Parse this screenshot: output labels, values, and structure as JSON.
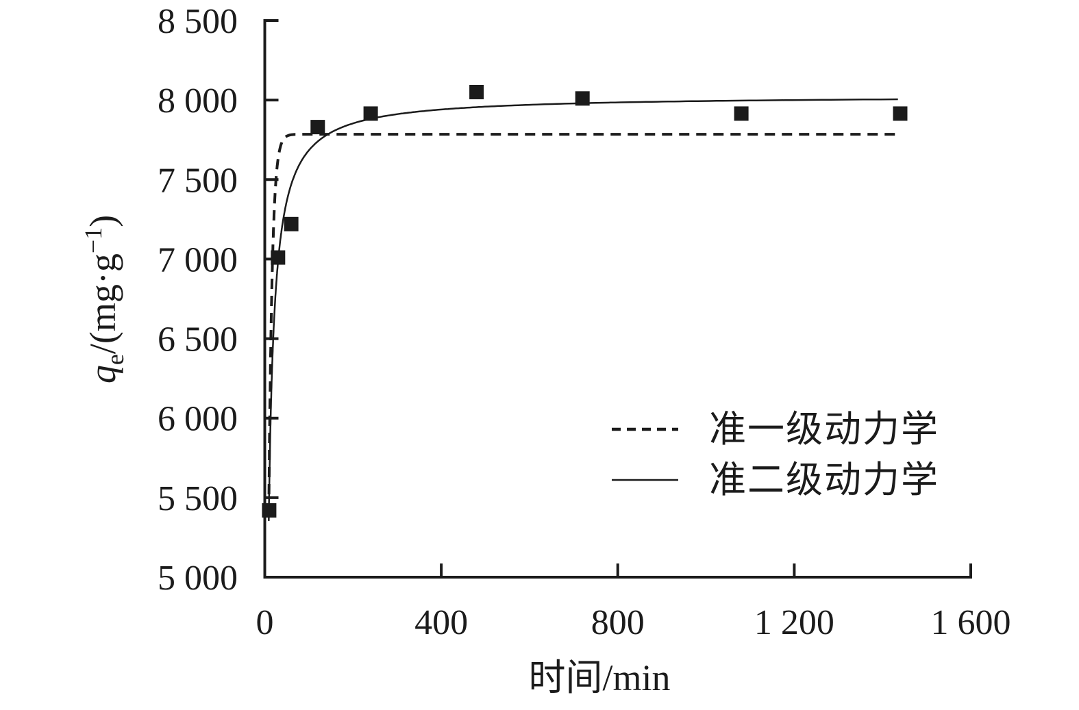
{
  "chart_data": {
    "type": "scatter",
    "title": "",
    "xlabel": "时间/min",
    "ylabel": {
      "variable": "q",
      "variable_subscript": "e",
      "unit_open": "/(mg·g",
      "unit_exponent": "−1",
      "unit_close": ")"
    },
    "xlim": [
      0,
      1600
    ],
    "ylim": [
      5000,
      8500
    ],
    "x_ticks": [
      0,
      400,
      800,
      1200,
      1600
    ],
    "x_tick_labels": [
      "0",
      "400",
      "800",
      "1 200",
      "1 600"
    ],
    "y_ticks": [
      8500,
      8000,
      7500,
      7000,
      6500,
      6000,
      5500,
      5000
    ],
    "y_tick_labels": [
      "8 500",
      "8 000",
      "7 500",
      "7 000",
      "6 500",
      "6 000",
      "5 500",
      "5 000"
    ],
    "grid": false,
    "points_marker": "filled-square",
    "points": [
      {
        "t": 10,
        "qe": 5420
      },
      {
        "t": 30,
        "qe": 7010
      },
      {
        "t": 60,
        "qe": 7220
      },
      {
        "t": 120,
        "qe": 7830
      },
      {
        "t": 240,
        "qe": 7915
      },
      {
        "t": 480,
        "qe": 8050
      },
      {
        "t": 720,
        "qe": 8010
      },
      {
        "t": 1080,
        "qe": 7915
      },
      {
        "t": 1440,
        "qe": 7915
      }
    ],
    "fits": [
      {
        "name": "准一级动力学",
        "model": "pseudo-first-order",
        "line_style": "dashed",
        "qe": 7785,
        "k1": 0.13,
        "t_start": 9.5,
        "t_end": 1435
      },
      {
        "name": "准二级动力学",
        "model": "pseudo-second-order",
        "line_style": "solid",
        "qe": 8030,
        "half_sat_b": 4.5,
        "t_start": 9,
        "t_end": 1435
      }
    ],
    "legend": {
      "position": "inside-right-middle",
      "items": [
        {
          "label": "准一级动力学",
          "line_style": "dashed"
        },
        {
          "label": "准二级动力学",
          "line_style": "solid"
        }
      ]
    },
    "ink_color": "#1b1b1b",
    "background_color": "#ffffff"
  }
}
